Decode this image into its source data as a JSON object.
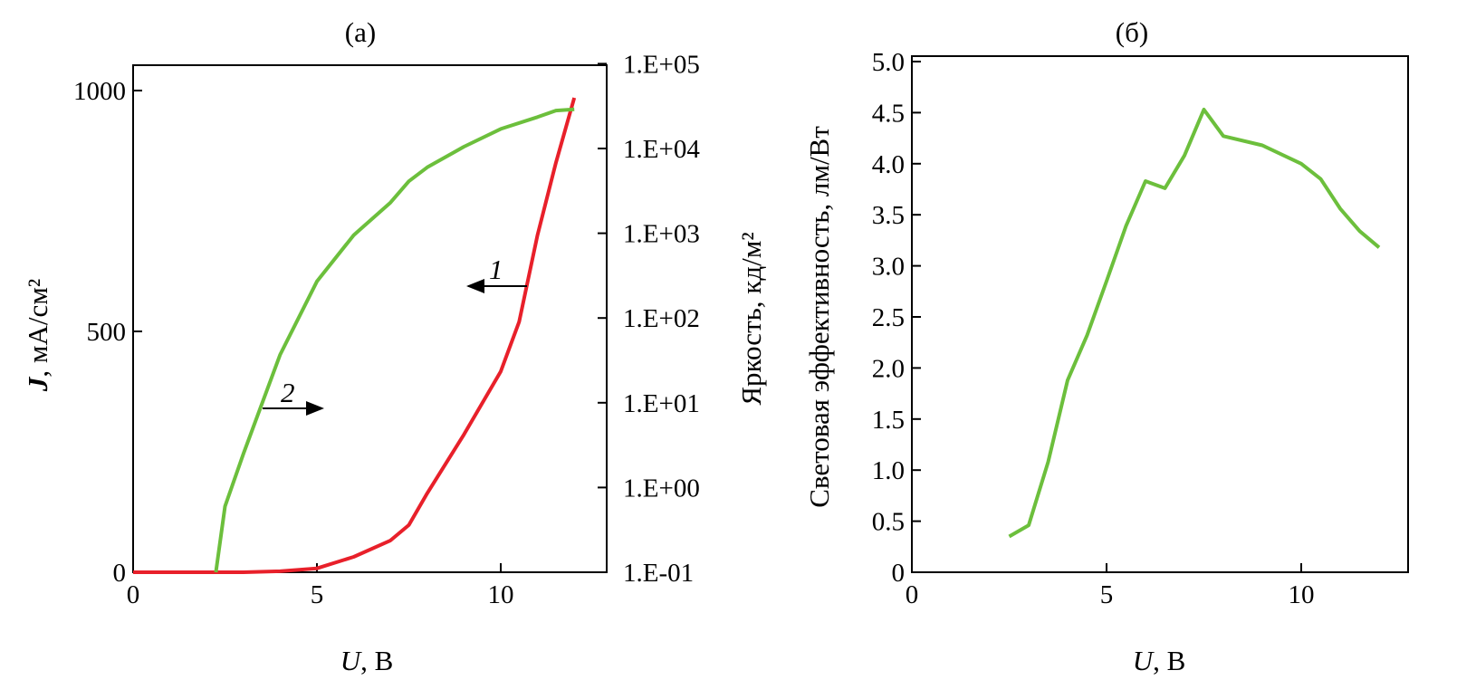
{
  "chart_data": [
    {
      "type": "line",
      "title": "(а)",
      "xlabel": "U, В",
      "ylabel": "J, мА/см²",
      "y2label": "Яркость, кд/м²",
      "xlim": [
        0,
        13
      ],
      "ylim": [
        0,
        1050
      ],
      "y2lim": [
        0.1,
        200000
      ],
      "y2scale": "log",
      "xticks": [
        "0",
        "5",
        "10"
      ],
      "yticks": [
        "0",
        "500",
        "1000"
      ],
      "y2ticks": [
        "1.E-01",
        "1.E+00",
        "1.E+01",
        "1.E+02",
        "1.E+03",
        "1.E+04",
        "1.E+05"
      ],
      "grid": false,
      "series": [
        {
          "name": "1",
          "axis": "left",
          "color": "#e8202a",
          "arrow": "left",
          "x": [
            0,
            2,
            3,
            4,
            5,
            6,
            7,
            7.5,
            8,
            9,
            10,
            10.5,
            11,
            11.5,
            12
          ],
          "y": [
            0,
            0,
            0,
            2,
            8,
            32,
            66,
            98,
            164,
            286,
            417,
            520,
            700,
            850,
            985
          ]
        },
        {
          "name": "2",
          "axis": "right",
          "color": "#6cbf3c",
          "arrow": "right",
          "x": [
            2.25,
            2.5,
            3,
            4,
            5,
            6,
            7,
            7.5,
            8,
            9,
            10,
            11,
            11.5,
            12
          ],
          "y": [
            0.1,
            0.6,
            2.5,
            37,
            270,
            950,
            2300,
            4100,
            6000,
            10500,
            17000,
            23500,
            28000,
            29000
          ]
        }
      ]
    },
    {
      "type": "line",
      "title": "(б)",
      "xlabel": "U, В",
      "ylabel": "Световая эффективность, лм/Вт",
      "xlim": [
        0,
        13
      ],
      "ylim": [
        0,
        5.0
      ],
      "xticks": [
        "0",
        "5",
        "10"
      ],
      "yticks": [
        "0",
        "0.5",
        "1.0",
        "1.5",
        "2.0",
        "2.5",
        "3.0",
        "3.5",
        "4.0",
        "4.5",
        "5.0"
      ],
      "grid": false,
      "series": [
        {
          "color": "#6cbf3c",
          "x": [
            2.5,
            3,
            3.5,
            4,
            4.5,
            5,
            5.5,
            6,
            6.5,
            7,
            7.5,
            8,
            9,
            10,
            10.5,
            11,
            11.5,
            12
          ],
          "y": [
            0.35,
            0.46,
            1.08,
            1.88,
            2.32,
            2.85,
            3.39,
            3.83,
            3.76,
            4.08,
            4.53,
            4.27,
            4.18,
            4.0,
            3.85,
            3.56,
            3.34,
            3.18
          ]
        }
      ]
    }
  ]
}
